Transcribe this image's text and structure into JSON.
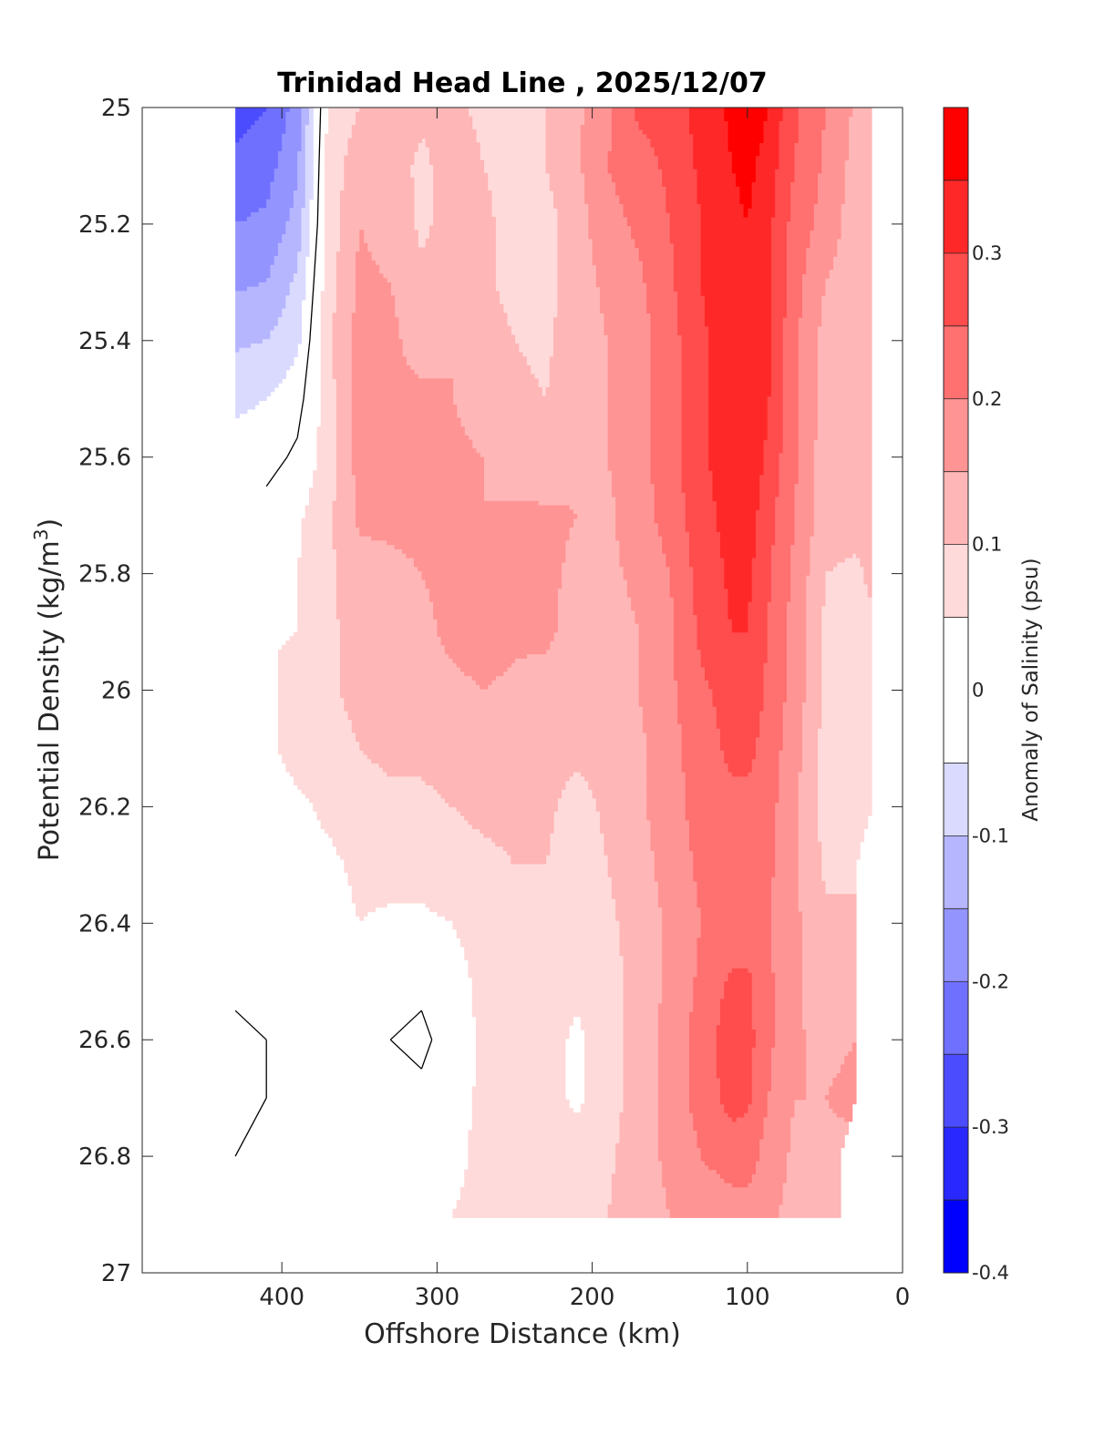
{
  "chart_data": {
    "type": "heatmap",
    "subtype": "filled-contour",
    "title": "Trinidad Head Line , 2025/12/07",
    "xlabel": "Offshore Distance (km)",
    "ylabel": "Potential Density (kg/m",
    "ylabel_sup": "3",
    "ylabel_suffix": ")",
    "xlim": [
      490,
      0
    ],
    "x_reversed": true,
    "ylim": [
      25,
      27
    ],
    "y_reversed": true,
    "xticks": [
      400,
      300,
      200,
      100,
      0
    ],
    "xtick_labels": [
      "400",
      "300",
      "200",
      "100",
      "0"
    ],
    "yticks": [
      25,
      25.2,
      25.4,
      25.6,
      25.8,
      26,
      26.2,
      26.4,
      26.6,
      26.8,
      27
    ],
    "ytick_labels": [
      "25",
      "25.2",
      "25.4",
      "25.6",
      "25.8",
      "26",
      "26.2",
      "26.4",
      "26.6",
      "26.8",
      "27"
    ],
    "colorbar": {
      "label": "Anomaly of Salinity (psu)",
      "range": [
        -0.4,
        0.4
      ],
      "levels": [
        -0.4,
        -0.35,
        -0.3,
        -0.25,
        -0.2,
        -0.15,
        -0.1,
        -0.05,
        0.05,
        0.1,
        0.15,
        0.2,
        0.25,
        0.3,
        0.35,
        0.4
      ],
      "colors": [
        "#0000ff",
        "#2828ff",
        "#4c4cff",
        "#7070ff",
        "#9494ff",
        "#b6b6ff",
        "#dadaff",
        "#ffffff",
        "#ffdada",
        "#ffb6b6",
        "#ff9494",
        "#ff7070",
        "#ff4c4c",
        "#ff2828",
        "#ff0000"
      ],
      "ticks": [
        -0.4,
        -0.3,
        -0.2,
        -0.1,
        0,
        0.1,
        0.2,
        0.3
      ],
      "tick_labels": [
        "-0.4",
        "-0.3",
        "-0.2",
        "-0.1",
        "0",
        "0.1",
        "0.2",
        "0.3"
      ]
    },
    "zero_contour_color": "#000000",
    "columns_km": [
      430,
      410,
      390,
      370,
      350,
      330,
      310,
      290,
      270,
      250,
      230,
      210,
      190,
      170,
      150,
      130,
      110,
      100,
      90,
      70,
      50,
      30,
      20
    ],
    "rows_sigma": [
      25.0,
      25.1,
      25.2,
      25.3,
      25.4,
      25.5,
      25.6,
      25.7,
      25.8,
      25.9,
      26.0,
      26.1,
      26.2,
      26.3,
      26.4,
      26.5,
      26.6,
      26.7,
      26.8,
      26.9
    ],
    "valid_from_km": [
      430,
      430,
      430,
      430,
      430,
      430,
      430,
      390,
      390,
      390,
      430,
      430,
      430,
      430,
      430,
      430,
      430,
      430,
      430,
      300
    ],
    "valid_to_km": [
      20,
      20,
      20,
      20,
      20,
      20,
      20,
      20,
      20,
      20,
      20,
      20,
      20,
      30,
      30,
      30,
      30,
      30,
      40,
      40
    ],
    "salinity_anomaly": [
      [
        -0.27,
        -0.25,
        -0.18,
        0.06,
        0.1,
        0.13,
        0.11,
        0.11,
        0.09,
        0.08,
        0.1,
        0.14,
        0.19,
        0.26,
        0.27,
        0.32,
        0.36,
        0.37,
        0.36,
        0.26,
        0.2,
        0.14,
        0.11
      ],
      [
        -0.24,
        -0.22,
        -0.16,
        0.07,
        0.13,
        0.12,
        0.09,
        0.12,
        0.1,
        0.08,
        0.1,
        0.14,
        0.2,
        0.23,
        0.26,
        0.31,
        0.35,
        0.36,
        0.34,
        0.25,
        0.19,
        0.13,
        0.12
      ],
      [
        -0.2,
        -0.19,
        -0.13,
        0.07,
        0.15,
        0.13,
        0.09,
        0.12,
        0.11,
        0.08,
        0.08,
        0.13,
        0.18,
        0.21,
        0.25,
        0.3,
        0.34,
        0.35,
        0.33,
        0.23,
        0.18,
        0.12,
        0.13
      ],
      [
        -0.16,
        -0.15,
        -0.09,
        0.08,
        0.16,
        0.15,
        0.11,
        0.12,
        0.11,
        0.08,
        0.08,
        0.13,
        0.16,
        0.19,
        0.24,
        0.3,
        0.34,
        0.35,
        0.33,
        0.22,
        0.15,
        0.12,
        0.14
      ],
      [
        -0.11,
        -0.1,
        -0.06,
        0.09,
        0.17,
        0.16,
        0.13,
        0.15,
        0.13,
        0.1,
        0.09,
        0.13,
        0.15,
        0.18,
        0.23,
        0.29,
        0.33,
        0.34,
        0.33,
        0.21,
        0.13,
        0.13,
        0.14
      ],
      [
        -0.06,
        -0.05,
        -0.02,
        0.08,
        0.17,
        0.16,
        0.16,
        0.15,
        0.13,
        0.11,
        0.1,
        0.13,
        0.15,
        0.18,
        0.23,
        0.29,
        0.33,
        0.35,
        0.32,
        0.21,
        0.13,
        0.13,
        0.14
      ],
      [
        -0.03,
        -0.02,
        0.01,
        0.07,
        0.17,
        0.17,
        0.16,
        0.16,
        0.15,
        0.12,
        0.11,
        0.14,
        0.15,
        0.18,
        0.23,
        0.29,
        0.33,
        0.35,
        0.3,
        0.21,
        0.12,
        0.13,
        0.14
      ],
      [
        0.0,
        0.02,
        0.04,
        0.09,
        0.16,
        0.16,
        0.16,
        0.15,
        0.15,
        0.16,
        0.16,
        0.15,
        0.14,
        0.18,
        0.22,
        0.28,
        0.32,
        0.33,
        0.28,
        0.2,
        0.12,
        0.12,
        0.12
      ],
      [
        0.01,
        0.03,
        0.05,
        0.09,
        0.13,
        0.14,
        0.15,
        0.16,
        0.17,
        0.16,
        0.16,
        0.14,
        0.14,
        0.16,
        0.2,
        0.27,
        0.31,
        0.31,
        0.27,
        0.19,
        0.1,
        0.09,
        0.11
      ],
      [
        0.02,
        0.04,
        0.06,
        0.09,
        0.12,
        0.13,
        0.14,
        0.16,
        0.17,
        0.16,
        0.16,
        0.13,
        0.13,
        0.15,
        0.19,
        0.26,
        0.3,
        0.3,
        0.26,
        0.18,
        0.09,
        0.08,
        0.09
      ],
      [
        0.03,
        0.04,
        0.07,
        0.09,
        0.12,
        0.13,
        0.13,
        0.14,
        0.15,
        0.14,
        0.13,
        0.13,
        0.13,
        0.15,
        0.19,
        0.24,
        0.27,
        0.28,
        0.25,
        0.18,
        0.09,
        0.08,
        0.09
      ],
      [
        0.04,
        0.04,
        0.07,
        0.07,
        0.1,
        0.11,
        0.11,
        0.12,
        0.13,
        0.12,
        0.12,
        0.11,
        0.12,
        0.14,
        0.18,
        0.23,
        0.26,
        0.26,
        0.24,
        0.17,
        0.08,
        0.07,
        0.08
      ],
      [
        0.03,
        0.02,
        0.04,
        0.06,
        0.08,
        0.09,
        0.09,
        0.1,
        0.11,
        0.11,
        0.11,
        0.08,
        0.11,
        0.14,
        0.18,
        0.22,
        0.24,
        0.24,
        0.23,
        0.16,
        0.08,
        0.07,
        0.07
      ],
      [
        0.02,
        0.02,
        0.03,
        0.04,
        0.06,
        0.07,
        0.07,
        0.08,
        0.09,
        0.1,
        0.1,
        0.07,
        0.1,
        0.13,
        0.17,
        0.21,
        0.23,
        0.23,
        0.22,
        0.16,
        0.09,
        0.09,
        0.09
      ],
      [
        0.01,
        0.01,
        0.02,
        0.03,
        0.05,
        0.04,
        0.04,
        0.05,
        0.08,
        0.09,
        0.09,
        0.07,
        0.09,
        0.12,
        0.16,
        0.2,
        0.22,
        0.22,
        0.21,
        0.16,
        0.11,
        0.11,
        0.1
      ],
      [
        0.01,
        0.0,
        0.01,
        0.02,
        0.03,
        0.01,
        0.01,
        0.02,
        0.07,
        0.08,
        0.08,
        0.06,
        0.08,
        0.12,
        0.16,
        0.21,
        0.26,
        0.26,
        0.22,
        0.16,
        0.12,
        0.12,
        0.1
      ],
      [
        -0.01,
        0.0,
        0.01,
        0.02,
        0.03,
        0.0,
        -0.01,
        0.02,
        0.06,
        0.08,
        0.07,
        0.04,
        0.08,
        0.12,
        0.17,
        0.22,
        0.28,
        0.27,
        0.22,
        0.16,
        0.13,
        0.15,
        0.12
      ],
      [
        -0.01,
        0.0,
        0.01,
        0.02,
        0.03,
        0.02,
        0.01,
        0.03,
        0.06,
        0.08,
        0.07,
        0.04,
        0.08,
        0.12,
        0.17,
        0.22,
        0.27,
        0.26,
        0.21,
        0.15,
        0.15,
        0.17,
        0.14
      ],
      [
        0.0,
        0.0,
        0.0,
        0.01,
        0.02,
        0.02,
        0.02,
        0.03,
        0.07,
        0.08,
        0.08,
        0.07,
        0.09,
        0.13,
        0.16,
        0.2,
        0.22,
        0.22,
        0.19,
        0.14,
        0.13,
        0.13,
        0.13
      ],
      [
        0.0,
        0.0,
        0.0,
        0.0,
        0.0,
        0.02,
        0.04,
        0.05,
        0.07,
        0.09,
        0.09,
        0.08,
        0.1,
        0.13,
        0.15,
        0.17,
        0.18,
        0.18,
        0.17,
        0.13,
        0.12,
        0.12,
        0.12
      ]
    ]
  }
}
